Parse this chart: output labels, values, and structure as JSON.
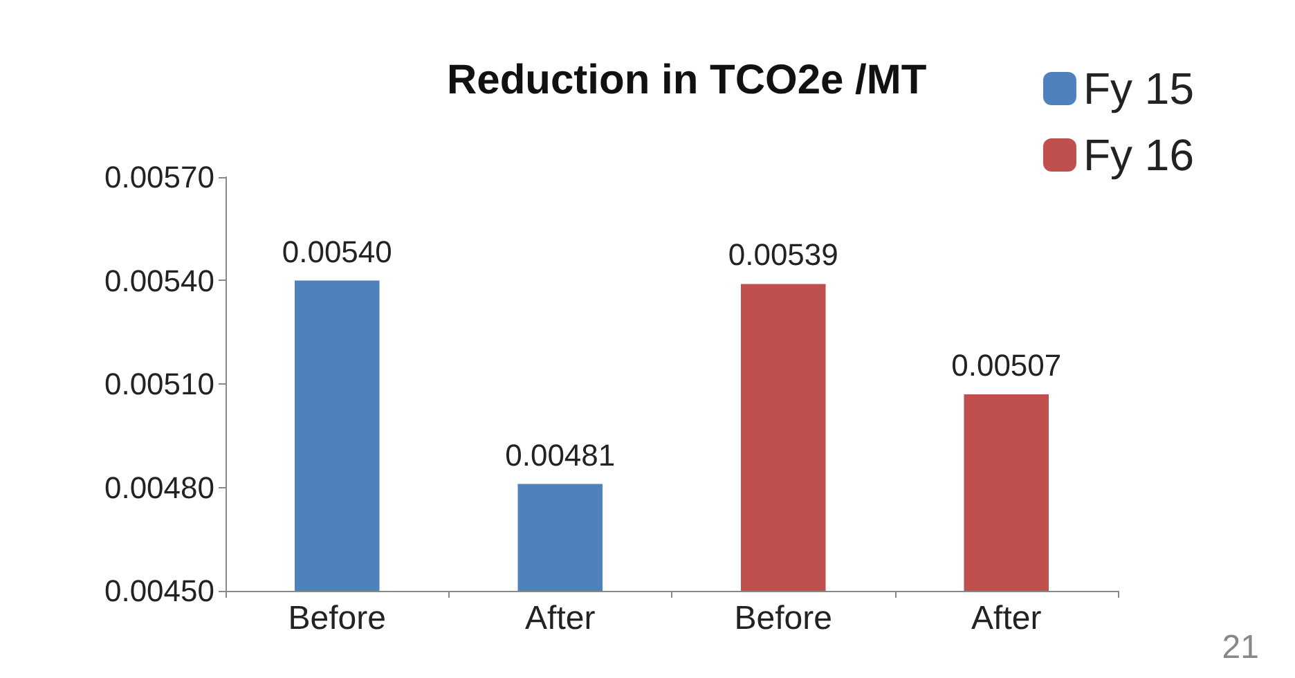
{
  "chart_data": {
    "type": "bar",
    "title": "Reduction in TCO2e /MT",
    "categories": [
      "Before",
      "After",
      "Before",
      "After"
    ],
    "series": [
      {
        "name": "Fy 15",
        "color": "#4f81bd",
        "values": [
          0.0054,
          0.00481,
          null,
          null
        ],
        "value_labels": [
          "0.00540",
          "0.00481",
          null,
          null
        ]
      },
      {
        "name": "Fy 16",
        "color": "#c0504d",
        "values": [
          null,
          null,
          0.00539,
          0.00507
        ],
        "value_labels": [
          null,
          null,
          "0.00539",
          "0.00507"
        ]
      }
    ],
    "ylim": [
      0.0045,
      0.0057
    ],
    "yticks": [
      {
        "value": 0.0045,
        "label": "0.00450"
      },
      {
        "value": 0.0048,
        "label": "0.00480"
      },
      {
        "value": 0.0051,
        "label": "0.00510"
      },
      {
        "value": 0.0054,
        "label": "0.00540"
      },
      {
        "value": 0.0057,
        "label": "0.00570"
      }
    ],
    "grid": false,
    "legend": "top right",
    "annotations": [
      "21"
    ]
  }
}
